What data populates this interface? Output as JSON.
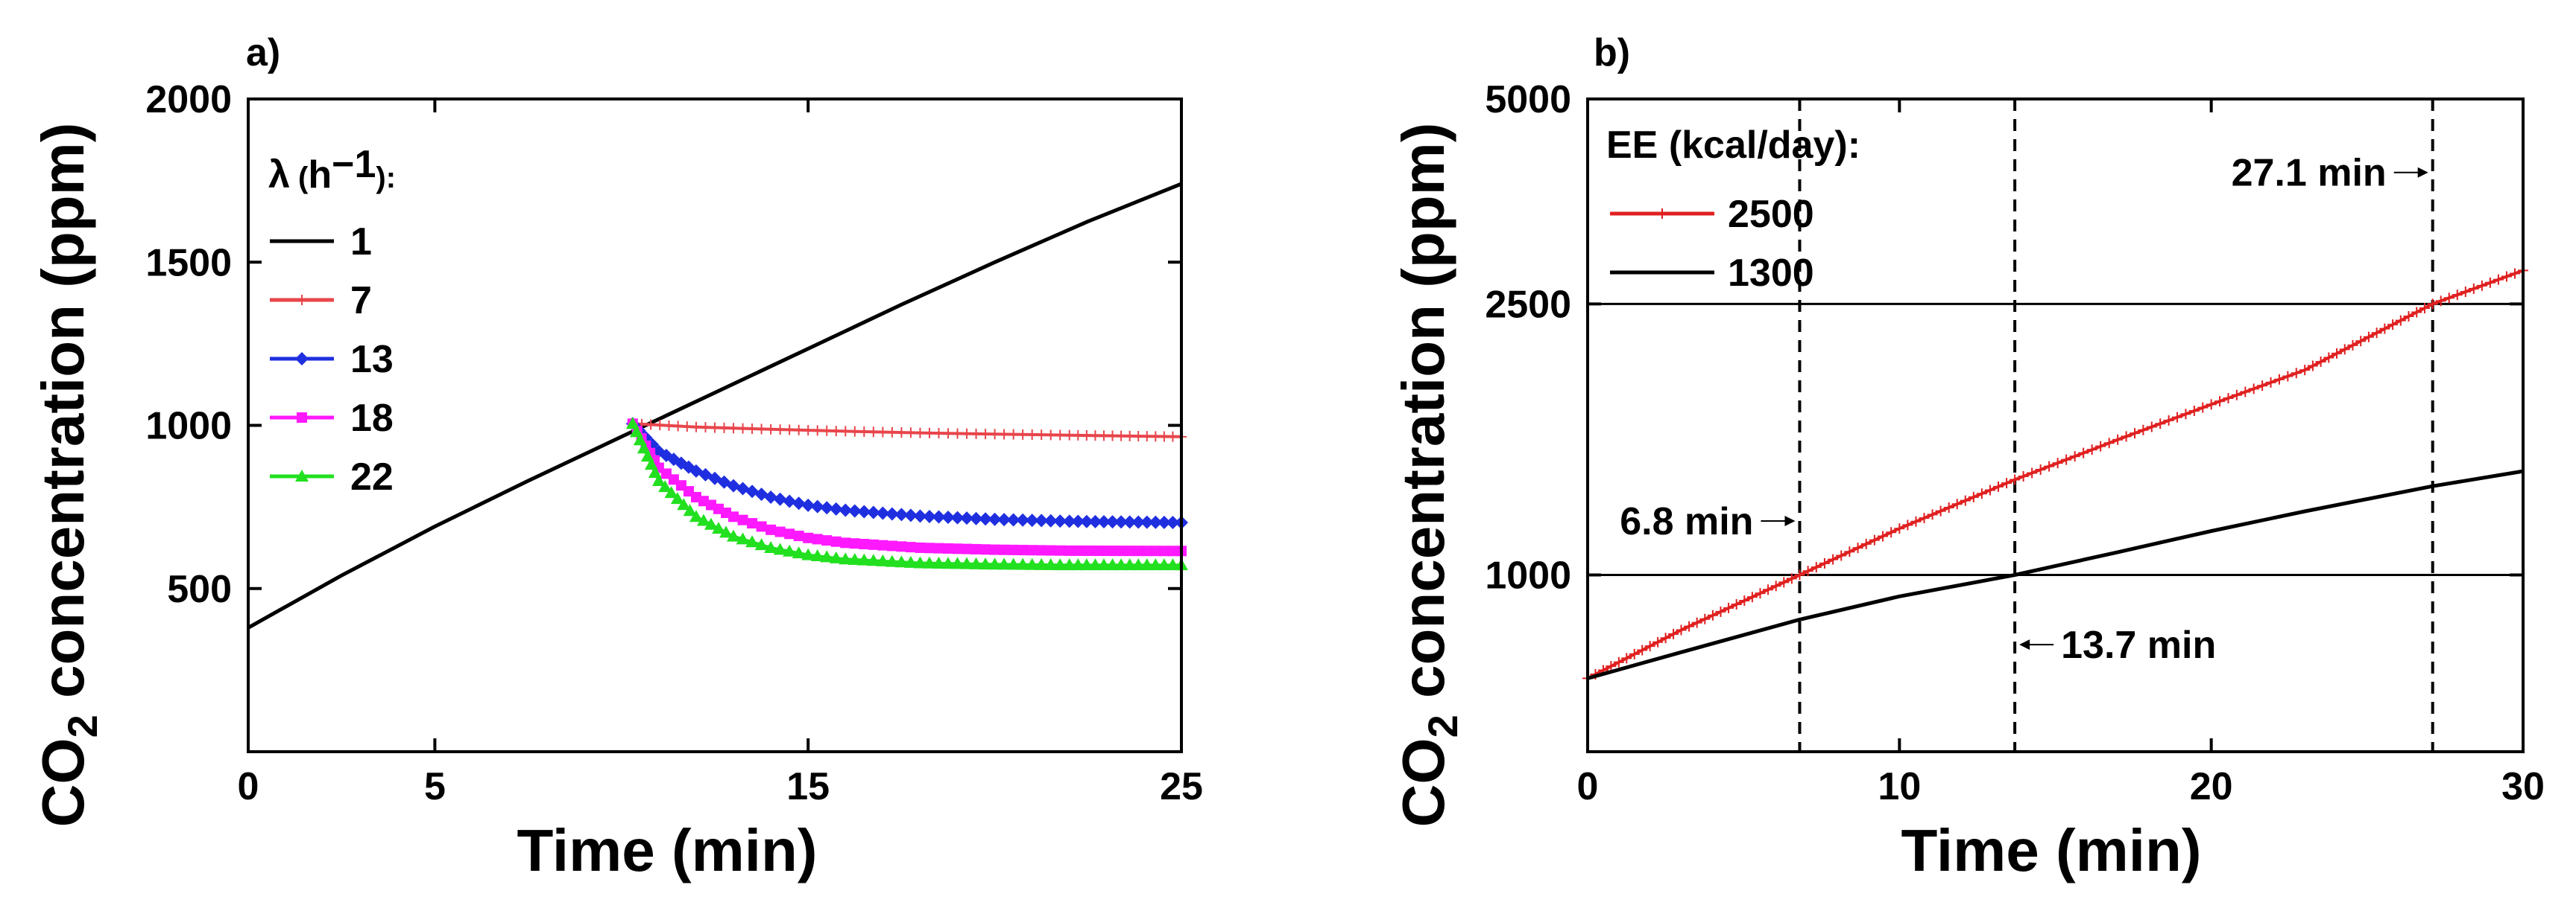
{
  "chart_data": [
    {
      "panel_label": "a)",
      "type": "line",
      "xlabel": "Time (min)",
      "ylabel": {
        "prefix": "CO",
        "subscript": "2",
        "suffix": " concentration (ppm)"
      },
      "xlim": [
        0,
        25
      ],
      "ylim": [
        0,
        2000
      ],
      "xticks": [
        0,
        5,
        15,
        25
      ],
      "yticks": [
        500,
        1000,
        1500,
        2000
      ],
      "legend": {
        "title": {
          "symbol": "λ",
          "open": " (",
          "unit": "h",
          "exponent": "−1",
          "close": "):"
        },
        "position": "top-left"
      },
      "series": [
        {
          "name": "1",
          "color": "#000000",
          "marker": "none",
          "x": [
            0,
            2.5,
            5,
            7.5,
            10,
            12.5,
            15,
            17.5,
            20,
            22.5,
            25
          ],
          "y": [
            380,
            540,
            690,
            830,
            965,
            1100,
            1235,
            1370,
            1500,
            1625,
            1740
          ]
        },
        {
          "name": "7",
          "color": "#e8454b",
          "marker": "plus",
          "x": [
            10.3,
            12,
            14,
            16,
            18,
            20,
            22,
            25
          ],
          "y": [
            1005,
            995,
            988,
            982,
            977,
            973,
            970,
            965
          ]
        },
        {
          "name": "13",
          "color": "#1f2fe0",
          "marker": "diamond",
          "x": [
            10.3,
            11,
            12,
            13,
            14,
            15,
            16,
            18,
            20,
            22,
            25
          ],
          "y": [
            1005,
            920,
            860,
            815,
            780,
            755,
            740,
            722,
            712,
            706,
            702
          ]
        },
        {
          "name": "18",
          "color": "#ff19ff",
          "marker": "square",
          "x": [
            10.3,
            11,
            12,
            13,
            14,
            15,
            16,
            18,
            20,
            22,
            25
          ],
          "y": [
            1005,
            870,
            780,
            720,
            680,
            655,
            640,
            625,
            619,
            616,
            615
          ]
        },
        {
          "name": "22",
          "color": "#22e01f",
          "marker": "triangle",
          "x": [
            10.3,
            11,
            12,
            13,
            14,
            15,
            16,
            18,
            20,
            22,
            25
          ],
          "y": [
            1005,
            830,
            720,
            660,
            625,
            603,
            590,
            578,
            574,
            572,
            572
          ]
        }
      ]
    },
    {
      "panel_label": "b)",
      "type": "line",
      "xlabel": "Time (min)",
      "ylabel": {
        "prefix": "CO",
        "subscript": "2",
        "suffix": " concentration (ppm)"
      },
      "xlim": [
        0,
        30
      ],
      "ylim": [
        550,
        5000
      ],
      "yscale": "log",
      "xticks": [
        0,
        10,
        20,
        30
      ],
      "yticks": [
        1000,
        2500,
        5000
      ],
      "hlines": [
        1000,
        2500
      ],
      "vlines": [
        6.8,
        13.7,
        27.1
      ],
      "legend": {
        "title": "EE (kcal/day):",
        "position": "top-left"
      },
      "series": [
        {
          "name": "2500",
          "color": "#e02020",
          "marker": "plus",
          "x": [
            0,
            3,
            6.8,
            10,
            13.7,
            17,
            20,
            23,
            27.1,
            30
          ],
          "y": [
            705,
            830,
            1000,
            1170,
            1380,
            1580,
            1780,
            2000,
            2500,
            2800
          ]
        },
        {
          "name": "1300",
          "color": "#000000",
          "marker": "none",
          "x": [
            0,
            3,
            6.8,
            10,
            13.7,
            17,
            20,
            23,
            27.1,
            30
          ],
          "y": [
            705,
            770,
            860,
            930,
            1000,
            1080,
            1160,
            1240,
            1350,
            1420
          ]
        }
      ],
      "annotations": [
        {
          "text": "6.8 min",
          "x": 6.8,
          "y": 1200,
          "side": "left"
        },
        {
          "text": "13.7 min",
          "x": 13.7,
          "y": 790,
          "side": "right"
        },
        {
          "text": "27.1 min",
          "x": 27.1,
          "y": 3900,
          "side": "left"
        }
      ]
    }
  ]
}
